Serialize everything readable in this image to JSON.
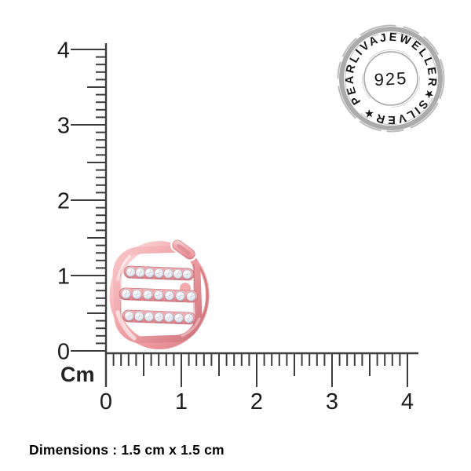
{
  "page": {
    "background": "#ffffff"
  },
  "caption": {
    "dimensions": "Dimensions : 1.5 cm x 1.5 cm"
  },
  "rulers": {
    "unit": "Cm",
    "vertical_labels": [
      "0",
      "1",
      "2",
      "3",
      "4"
    ],
    "horizontal_labels": [
      "0",
      "1",
      "2",
      "3",
      "4"
    ]
  },
  "stamp": {
    "ring_text": "PEARLIVAJEWELLER★SILVER★",
    "brand_arc": "PEARLIVAJEWELLER",
    "metal_arc": "SILVER",
    "separator": "★",
    "purity": "925"
  },
  "colors": {
    "ruler": "#3d3d3d",
    "label": "#1c1c1c",
    "stamp_ring": "#ababab",
    "stamp_text": "#161616",
    "rose_gold": "#f0a0a6",
    "rose_gold_light": "#fbd8da",
    "rose_gold_dark": "#d07c83",
    "diamond": "#eef1f6"
  }
}
